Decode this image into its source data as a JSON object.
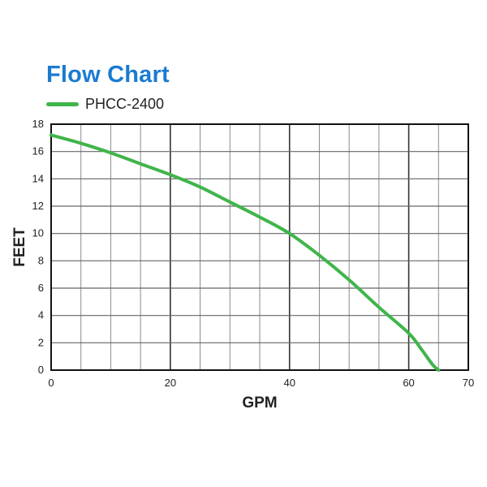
{
  "chart_data": {
    "type": "line",
    "title": "Flow Chart",
    "xlabel": "GPM",
    "ylabel": "FEET",
    "xlim": [
      0,
      70
    ],
    "ylim": [
      0,
      18
    ],
    "xticks": [
      0,
      20,
      40,
      60,
      70
    ],
    "yticks": [
      0,
      2,
      4,
      6,
      8,
      10,
      12,
      14,
      16,
      18
    ],
    "x_minor_step": 5,
    "grid": true,
    "legend_position": "top-left",
    "series": [
      {
        "name": "PHCC-2400",
        "color": "#3fb54a",
        "x": [
          0,
          5,
          10,
          15,
          20,
          25,
          30,
          35,
          40,
          45,
          50,
          55,
          60,
          62,
          64,
          65
        ],
        "y": [
          17.2,
          16.6,
          15.9,
          15.1,
          14.3,
          13.4,
          12.3,
          11.2,
          10.0,
          8.4,
          6.6,
          4.6,
          2.7,
          1.6,
          0.4,
          0
        ]
      }
    ]
  }
}
